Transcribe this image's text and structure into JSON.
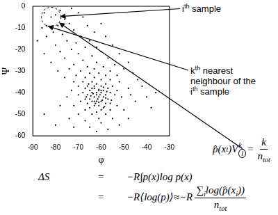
{
  "chart_data": {
    "type": "scatter",
    "x_label": "φ",
    "y_label": "Ψ",
    "color": "#000000",
    "grid": false,
    "xlim": [
      -90,
      -30
    ],
    "ylim": [
      -60,
      0
    ],
    "xticks": [
      -90,
      -80,
      -70,
      -60,
      -50,
      -40,
      -30
    ],
    "yticks": [
      -60,
      -50,
      -40,
      -30,
      -20,
      -10,
      0
    ],
    "x": [
      -85,
      -80,
      -82,
      -84,
      -78,
      -73,
      -70,
      -76,
      -68,
      -86,
      -79,
      -74,
      -72,
      -66,
      -81,
      -77,
      -69,
      -63,
      -84,
      -60,
      -88,
      -75,
      -71,
      -65,
      -58,
      -80,
      -67,
      -62,
      -73,
      -55,
      -85,
      -78,
      -70,
      -64,
      -60,
      -52,
      -76,
      -68,
      -62,
      -57,
      -82,
      -72,
      -66,
      -59,
      -54,
      -48,
      -74,
      -69,
      -63,
      -56,
      -79,
      -50,
      -65,
      -61,
      -71,
      -58,
      -67,
      -53,
      -63,
      -76,
      -46,
      -60,
      -56,
      -68,
      -64,
      -72,
      -52,
      -44,
      -62,
      -58,
      -66,
      -60,
      -55,
      -70,
      -63,
      -57,
      -67,
      -61,
      -65,
      -59,
      -53,
      -73,
      -48,
      -64,
      -60,
      -56,
      -68,
      -62,
      -58,
      -66,
      -54,
      -70,
      -61,
      -63,
      -59,
      -65,
      -57,
      -67,
      -51,
      -75,
      -62,
      -60,
      -64,
      -56,
      -58,
      -66,
      -69,
      -61,
      -63,
      -53,
      -72,
      -59,
      -65,
      -60,
      -56,
      -67,
      -62,
      -50,
      -78,
      -45,
      -40,
      -36,
      -42,
      -47,
      -38,
      -58,
      -64,
      -70,
      -61,
      -55,
      -67,
      -74,
      -60,
      -52,
      -65,
      -80,
      -57,
      -62,
      -48,
      -85,
      -72,
      -61,
      -63.5,
      -59.5,
      -64.5,
      -57.5,
      -62.5,
      -60.5,
      -65.5,
      -58.5,
      -61.5,
      -55.5,
      -66.5,
      -63,
      -60,
      -62,
      -58,
      -64,
      -61,
      -59,
      -63
    ],
    "values": [
      -3,
      -4,
      -5,
      -9,
      -2,
      -1,
      -3,
      -6,
      -5,
      -10,
      -9,
      -8,
      -11,
      -9,
      -12,
      -13,
      -14,
      -12,
      -14,
      -8,
      -16,
      -16,
      -17,
      -16,
      -14,
      -18,
      -19,
      -19,
      -20,
      -18,
      -22,
      -21,
      -22,
      -23,
      -21,
      -22,
      -24,
      -25,
      -26,
      -24,
      -26,
      -27,
      -28,
      -28,
      -27,
      -26,
      -29,
      -30,
      -29,
      -30,
      -30,
      -29,
      -31,
      -31,
      -32,
      -32,
      -33,
      -32,
      -33,
      -33,
      -31,
      -34,
      -34,
      -35,
      -35,
      -35,
      -35,
      -34,
      -36,
      -36,
      -37,
      -37,
      -37,
      -37,
      -38,
      -38,
      -38,
      -39,
      -39,
      -39,
      -39,
      -39,
      -38,
      -40,
      -40,
      -40,
      -40,
      -41,
      -41,
      -41,
      -41,
      -41,
      -42,
      -42,
      -42,
      -43,
      -43,
      -43,
      -42,
      -42,
      -44,
      -44,
      -44,
      -45,
      -45,
      -45,
      -44,
      -46,
      -46,
      -46,
      -46,
      -47,
      -47,
      -48,
      -48,
      -48,
      -49,
      -48,
      -46,
      -44,
      -42,
      -40,
      -37,
      -41,
      -47,
      -50,
      -50,
      -50,
      -52,
      -52,
      -53,
      -52,
      -54,
      -55,
      -56,
      -55,
      -57,
      -58,
      -52,
      -50,
      -56,
      -38.5,
      -40.5,
      -43.5,
      -41.5,
      -39.5,
      -45,
      -41,
      -36,
      -46.5,
      -43,
      -43.5,
      -42,
      -37,
      -39,
      -40,
      -42.5,
      -38,
      -44.5,
      -37.5,
      -44
    ],
    "ith_sample": {
      "x": -82,
      "y": -5
    },
    "kth_neighbour": {
      "x": -84,
      "y": -9
    },
    "annotations": {
      "sample_label": [
        [
          {
            "t": "i"
          },
          {
            "sup": "th"
          },
          {
            "t": " sample"
          }
        ]
      ],
      "neighbour_label": [
        [
          {
            "t": "k"
          },
          {
            "sup": "th"
          },
          {
            "t": " nearest"
          }
        ],
        [
          {
            "t": "neighbour of the"
          }
        ],
        [
          {
            "t": "i"
          },
          {
            "sup": "th"
          },
          {
            "t": " sample"
          }
        ]
      ]
    },
    "equations": {
      "volume": [
        {
          "t": "p̂(x"
        },
        {
          "sub": "i"
        },
        {
          "t": ")V"
        },
        {
          "sub": "i",
          "sup": "k",
          "circled": true
        },
        {
          "t": "="
        },
        {
          "frac": {
            "num": [
              {
                "t": "k"
              }
            ],
            "den": [
              {
                "t": "n"
              },
              {
                "sub": "tot"
              }
            ]
          }
        }
      ],
      "entropy": [
        {
          "lhs": [
            {
              "t": "ΔS"
            }
          ],
          "rel": "=",
          "rhs": [
            {
              "t": "−R∫p(x)log p(x)"
            }
          ]
        },
        {
          "rel": "=",
          "rhs": [
            {
              "t": "−R⟨log(p)⟩≈−R"
            },
            {
              "frac": {
                "num": [
                  {
                    "t": "∑"
                  },
                  {
                    "sub": "i"
                  },
                  {
                    "t": "log(p̂(x"
                  },
                  {
                    "sub": "i"
                  },
                  {
                    "t": "))"
                  }
                ],
                "den": [
                  {
                    "t": "n"
                  },
                  {
                    "sub": "tot"
                  }
                ]
              }
            }
          ]
        }
      ]
    }
  }
}
